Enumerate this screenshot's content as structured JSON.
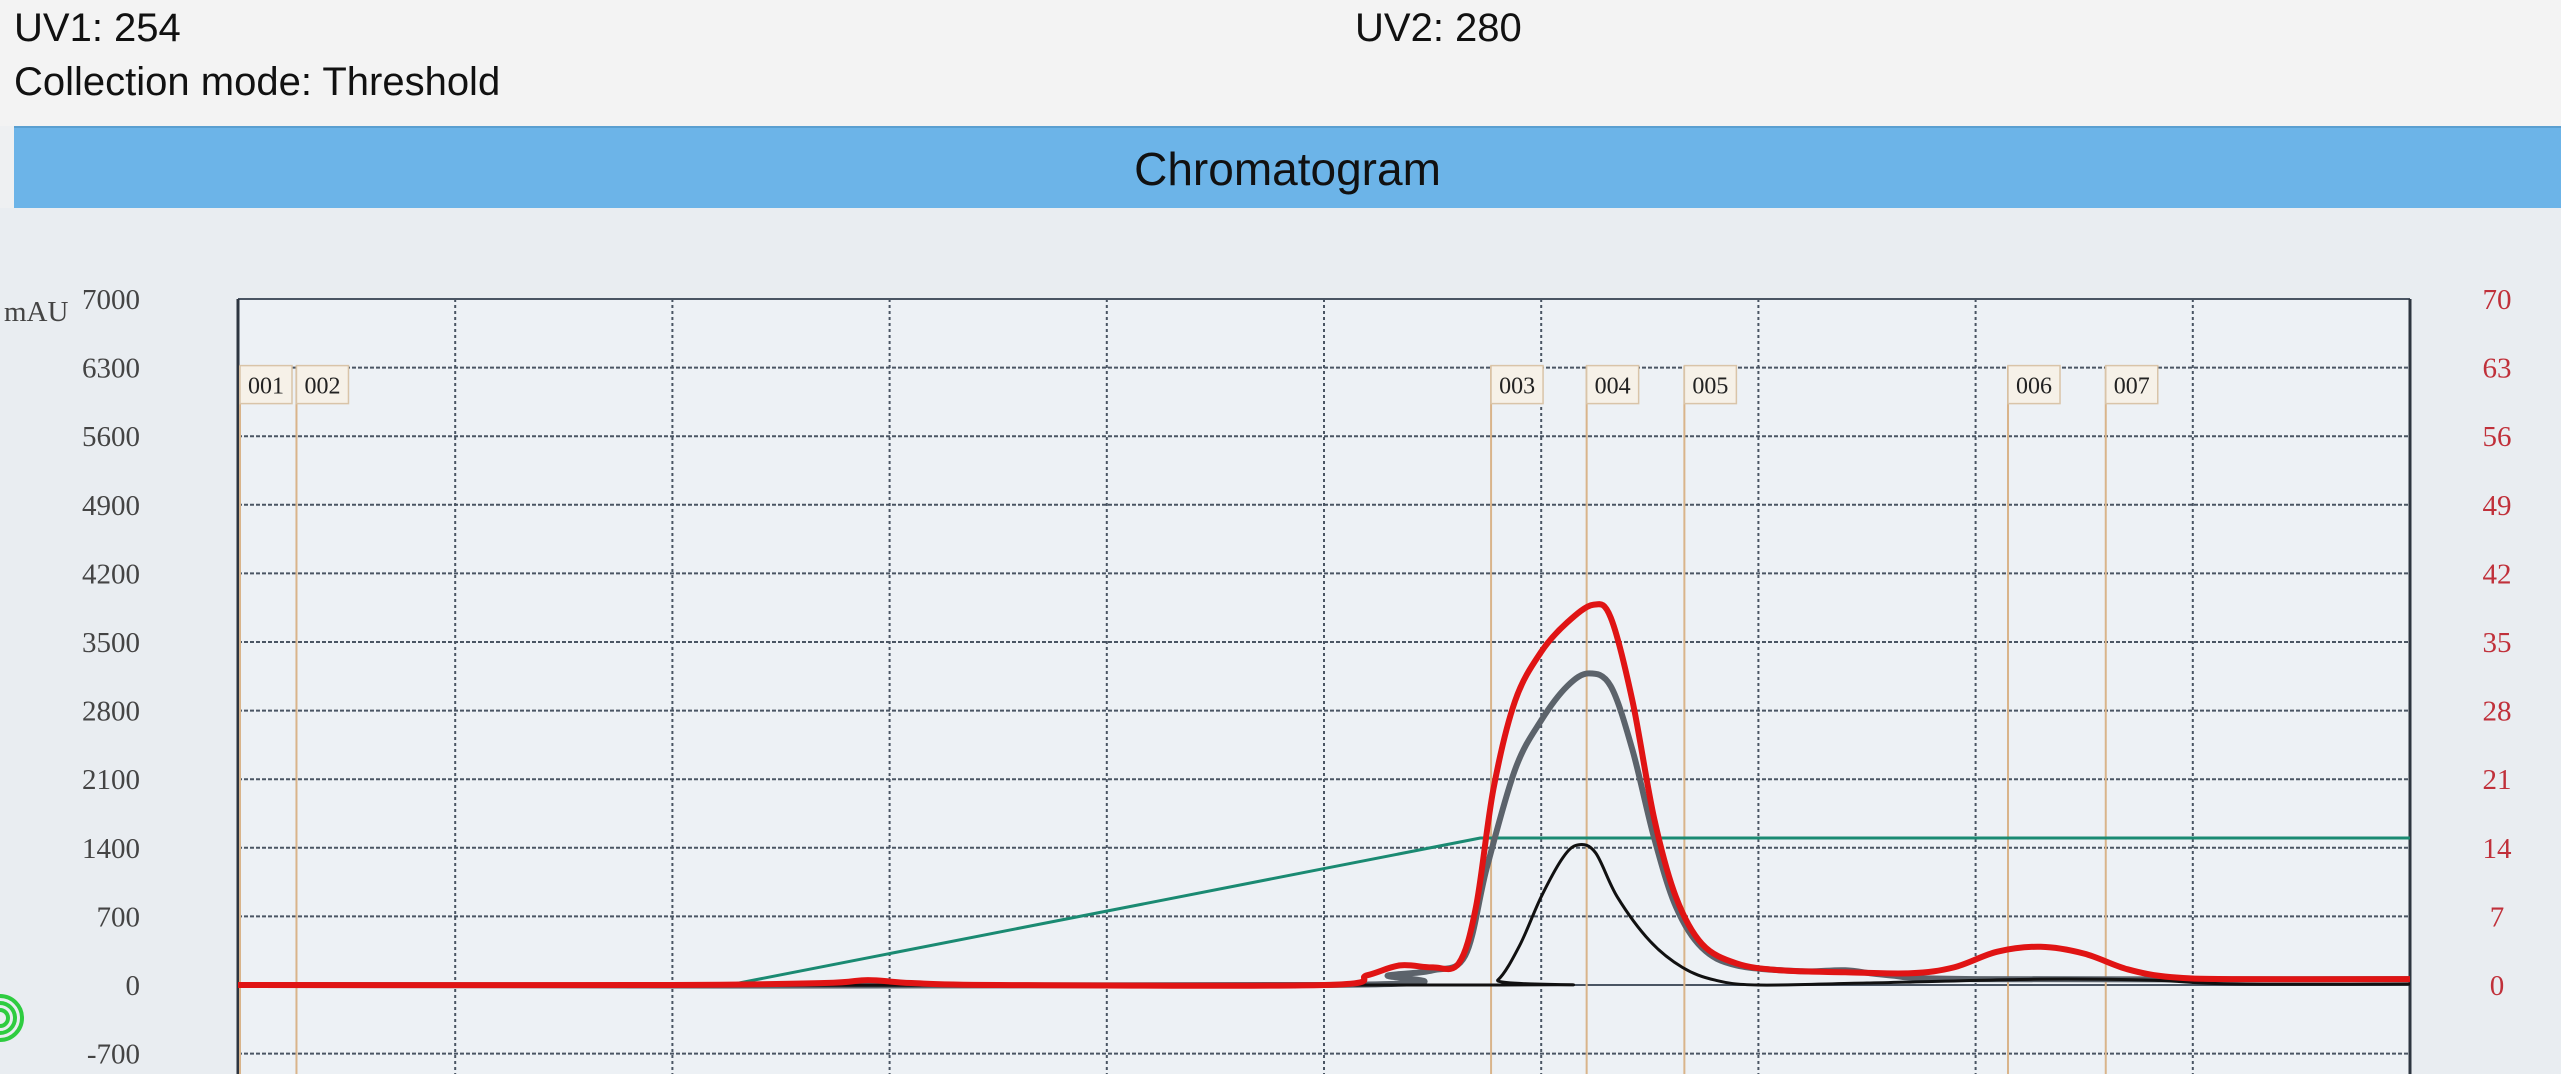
{
  "header": {
    "uv1": "UV1: 254",
    "uv2": "UV2: 280",
    "collection_mode": "Collection mode: Threshold",
    "section_title": "Chromatogram"
  },
  "chart_data": {
    "type": "line",
    "title": "Chromatogram",
    "ylabel": "mAU",
    "ylim": [
      -700,
      7000
    ],
    "yticks": [
      "7000",
      "6300",
      "5600",
      "4900",
      "4200",
      "3500",
      "2800",
      "2100",
      "1400",
      "700",
      "0",
      "-700"
    ],
    "y2lim": [
      0,
      70
    ],
    "y2ticks": [
      "70",
      "63",
      "56",
      "49",
      "42",
      "35",
      "28",
      "21",
      "14",
      "7",
      "0"
    ],
    "xlim": [
      0,
      10
    ],
    "x_tick_labels": "none",
    "grid": true,
    "fractions": [
      {
        "label": "001",
        "x": 0.0
      },
      {
        "label": "002",
        "x": 0.26
      },
      {
        "label": "003",
        "x": 5.76
      },
      {
        "label": "004",
        "x": 6.2
      },
      {
        "label": "005",
        "x": 6.65
      },
      {
        "label": "006",
        "x": 8.14
      },
      {
        "label": "007",
        "x": 8.59
      }
    ],
    "series": [
      {
        "color": "#1a8a72",
        "axis": "right",
        "points": [
          [
            0,
            0
          ],
          [
            2.26,
            0
          ],
          [
            5.72,
            15
          ],
          [
            10,
            15
          ]
        ]
      },
      {
        "color": "#5c636b",
        "axis": "left",
        "points": [
          [
            0,
            0
          ],
          [
            5.0,
            0
          ],
          [
            5.3,
            100
          ],
          [
            5.5,
            150
          ],
          [
            5.65,
            300
          ],
          [
            5.75,
            1200
          ],
          [
            5.88,
            2200
          ],
          [
            6.0,
            2700
          ],
          [
            6.12,
            3050
          ],
          [
            6.22,
            3180
          ],
          [
            6.32,
            3050
          ],
          [
            6.42,
            2400
          ],
          [
            6.52,
            1500
          ],
          [
            6.62,
            800
          ],
          [
            6.74,
            380
          ],
          [
            6.9,
            200
          ],
          [
            7.2,
            140
          ],
          [
            7.4,
            150
          ],
          [
            7.6,
            100
          ],
          [
            8.0,
            60
          ],
          [
            10,
            60
          ]
        ]
      },
      {
        "color": "#111111",
        "axis": "left",
        "points": [
          [
            0,
            0
          ],
          [
            5.7,
            0
          ],
          [
            5.8,
            50
          ],
          [
            5.9,
            400
          ],
          [
            6.0,
            900
          ],
          [
            6.1,
            1300
          ],
          [
            6.17,
            1430
          ],
          [
            6.25,
            1350
          ],
          [
            6.35,
            900
          ],
          [
            6.5,
            450
          ],
          [
            6.65,
            180
          ],
          [
            6.8,
            50
          ],
          [
            7.0,
            0
          ],
          [
            7.5,
            20
          ],
          [
            8.3,
            60
          ],
          [
            8.8,
            50
          ],
          [
            9.2,
            10
          ],
          [
            10,
            10
          ]
        ]
      },
      {
        "color": "#e01414",
        "axis": "left",
        "points": [
          [
            0,
            0
          ],
          [
            2.0,
            0
          ],
          [
            2.7,
            20
          ],
          [
            2.9,
            50
          ],
          [
            3.1,
            20
          ],
          [
            3.5,
            0
          ],
          [
            5.0,
            0
          ],
          [
            5.2,
            100
          ],
          [
            5.35,
            200
          ],
          [
            5.5,
            180
          ],
          [
            5.62,
            220
          ],
          [
            5.7,
            800
          ],
          [
            5.78,
            2000
          ],
          [
            5.88,
            2900
          ],
          [
            6.0,
            3400
          ],
          [
            6.12,
            3700
          ],
          [
            6.24,
            3880
          ],
          [
            6.32,
            3750
          ],
          [
            6.42,
            2900
          ],
          [
            6.52,
            1700
          ],
          [
            6.62,
            900
          ],
          [
            6.74,
            420
          ],
          [
            6.9,
            220
          ],
          [
            7.1,
            150
          ],
          [
            7.4,
            130
          ],
          [
            7.7,
            120
          ],
          [
            7.9,
            180
          ],
          [
            8.1,
            340
          ],
          [
            8.3,
            390
          ],
          [
            8.5,
            320
          ],
          [
            8.7,
            160
          ],
          [
            8.9,
            80
          ],
          [
            9.2,
            60
          ],
          [
            10,
            60
          ]
        ]
      }
    ]
  },
  "icons": {
    "corner": "signal-waves-icon",
    "corner_color": "#2ecc40"
  }
}
